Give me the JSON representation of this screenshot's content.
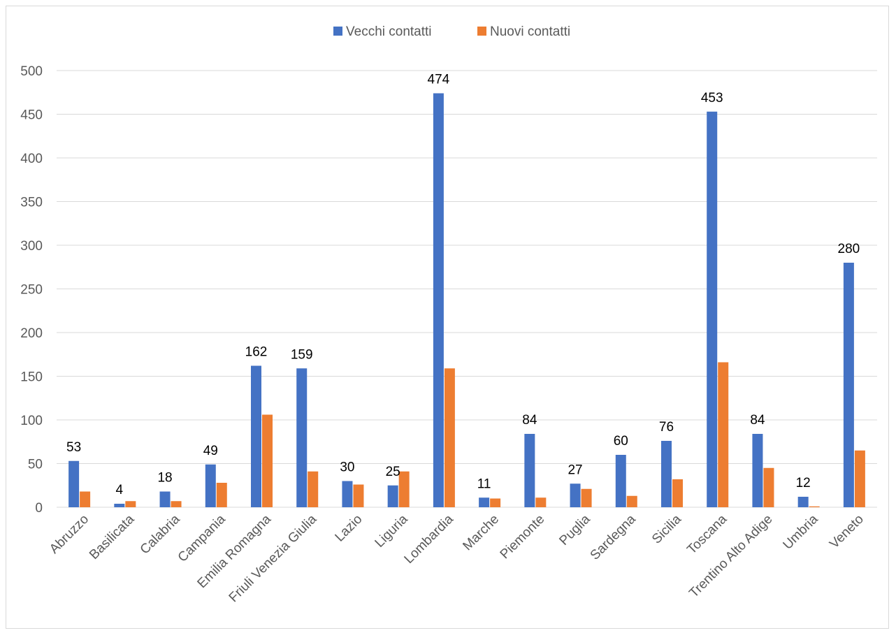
{
  "chart_data": {
    "type": "bar",
    "title": "",
    "xlabel": "",
    "ylabel": "",
    "ylim": [
      0,
      500
    ],
    "y_ticks": [
      0,
      50,
      100,
      150,
      200,
      250,
      300,
      350,
      400,
      450,
      500
    ],
    "grid": true,
    "legend_position": "top",
    "categories": [
      "Abruzzo",
      "Basilicata",
      "Calabria",
      "Campania",
      "Emilia Romagna",
      "Friuli Venezia Giulia",
      "Lazio",
      "Liguria",
      "Lombardia",
      "Marche",
      "Piemonte",
      "Puglia",
      "Sardegna",
      "Sicilia",
      "Toscana",
      "Trentino Alto Adige",
      "Umbria",
      "Veneto"
    ],
    "series": [
      {
        "name": "Vecchi contatti",
        "color": "#4472c4",
        "values": [
          53,
          4,
          18,
          49,
          162,
          159,
          30,
          25,
          474,
          11,
          84,
          27,
          60,
          76,
          453,
          84,
          12,
          280
        ],
        "data_labels": true
      },
      {
        "name": "Nuovi contatti",
        "color": "#ed7d31",
        "values": [
          18,
          7,
          7,
          28,
          106,
          41,
          26,
          41,
          159,
          10,
          11,
          21,
          13,
          32,
          166,
          45,
          1,
          65
        ],
        "data_labels": false
      }
    ]
  }
}
